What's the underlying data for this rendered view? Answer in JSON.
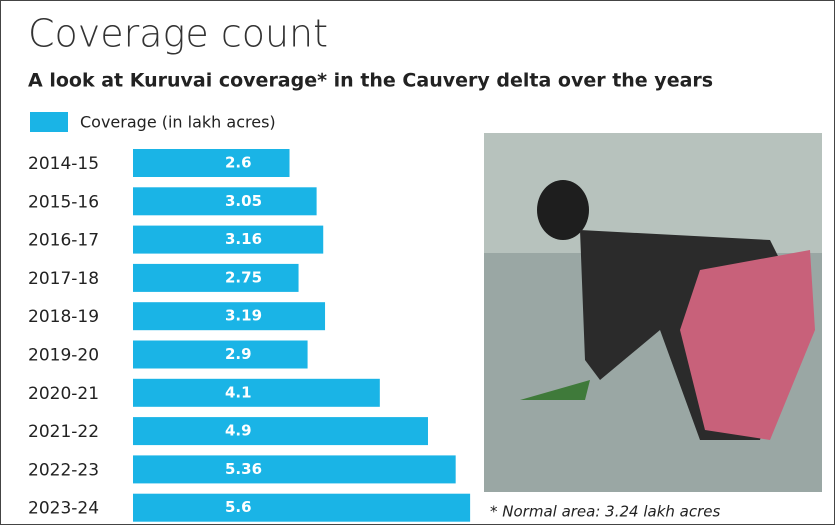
{
  "chart_data": {
    "type": "bar",
    "orientation": "horizontal",
    "title": "Coverage count",
    "subtitle": "A look at Kuruvai coverage* in the Cauvery delta over the years",
    "categories": [
      "2014-15",
      "2015-16",
      "2016-17",
      "2017-18",
      "2018-19",
      "2019-20",
      "2020-21",
      "2021-22",
      "2022-23",
      "2023-24"
    ],
    "series": [
      {
        "name": "Coverage (in lakh acres)",
        "color": "#1ab4e6",
        "values": [
          2.6,
          3.05,
          3.16,
          2.75,
          3.19,
          2.9,
          4.1,
          4.9,
          5.36,
          5.6
        ]
      }
    ],
    "annotation": "* Normal area: 3.24 lakh acres"
  }
}
